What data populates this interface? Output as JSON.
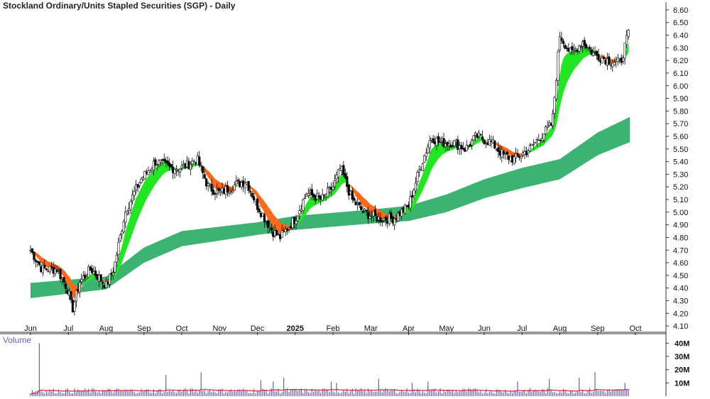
{
  "chart_data": {
    "type": "line",
    "subtype": "candlestick with moving-average ribbons",
    "title": "Stockland Ordinary/Units Stapled Securities (SGP) - Daily",
    "xlabel": "",
    "ylabel": "",
    "grid": false,
    "x_ticks": [
      "Jun",
      "Jul",
      "Aug",
      "Sep",
      "Oct",
      "Nov",
      "Dec",
      "2025",
      "Feb",
      "Mar",
      "Apr",
      "May",
      "Jun",
      "Jul",
      "Aug",
      "Sep",
      "Oct"
    ],
    "y_ticks": [
      "6.60",
      "6.50",
      "6.40",
      "6.30",
      "6.20",
      "6.10",
      "6.00",
      "5.90",
      "5.80",
      "5.70",
      "5.60",
      "5.50",
      "5.40",
      "5.30",
      "5.20",
      "5.10",
      "5.00",
      "4.90",
      "4.80",
      "4.70",
      "4.60",
      "4.50",
      "4.40",
      "4.30",
      "4.20",
      "4.10"
    ],
    "ylim": [
      4.05,
      6.65
    ],
    "price_series": {
      "name": "",
      "anchors_month_price": [
        [
          0.0,
          4.7
        ],
        [
          0.3,
          4.55
        ],
        [
          0.7,
          4.55
        ],
        [
          1.0,
          4.38
        ],
        [
          1.1,
          4.22
        ],
        [
          1.3,
          4.45
        ],
        [
          1.6,
          4.55
        ],
        [
          2.0,
          4.42
        ],
        [
          2.2,
          4.55
        ],
        [
          2.5,
          5.0
        ],
        [
          2.9,
          5.25
        ],
        [
          3.3,
          5.4
        ],
        [
          3.7,
          5.35
        ],
        [
          4.0,
          5.35
        ],
        [
          4.4,
          5.42
        ],
        [
          4.7,
          5.2
        ],
        [
          5.0,
          5.15
        ],
        [
          5.3,
          5.2
        ],
        [
          5.7,
          5.25
        ],
        [
          6.0,
          5.05
        ],
        [
          6.4,
          4.85
        ],
        [
          6.6,
          4.8
        ],
        [
          7.0,
          4.95
        ],
        [
          7.3,
          5.15
        ],
        [
          7.7,
          5.1
        ],
        [
          8.0,
          5.2
        ],
        [
          8.2,
          5.35
        ],
        [
          8.5,
          5.1
        ],
        [
          8.8,
          5.0
        ],
        [
          9.2,
          4.95
        ],
        [
          9.6,
          4.95
        ],
        [
          10.0,
          5.05
        ],
        [
          10.3,
          5.35
        ],
        [
          10.6,
          5.6
        ],
        [
          10.8,
          5.55
        ],
        [
          11.2,
          5.55
        ],
        [
          11.5,
          5.5
        ],
        [
          11.8,
          5.6
        ],
        [
          12.2,
          5.55
        ],
        [
          12.5,
          5.45
        ],
        [
          12.8,
          5.42
        ],
        [
          13.2,
          5.5
        ],
        [
          13.5,
          5.6
        ],
        [
          13.8,
          5.7
        ],
        [
          13.9,
          6.05
        ],
        [
          14.0,
          6.4
        ],
        [
          14.3,
          6.25
        ],
        [
          14.6,
          6.35
        ],
        [
          14.9,
          6.25
        ],
        [
          15.3,
          6.2
        ],
        [
          15.6,
          6.18
        ],
        [
          15.85,
          6.45
        ]
      ]
    },
    "short_ma_ribbon": {
      "name": "",
      "colors": {
        "rising": "#22e622",
        "falling": "#ff6a1a",
        "flat": "#f5b0b0"
      }
    },
    "long_ma_ribbon": {
      "name": "",
      "color": "#3cb371",
      "anchors_month_low_high": [
        [
          0.0,
          4.32,
          4.44
        ],
        [
          2.0,
          4.39,
          4.49
        ],
        [
          3.0,
          4.6,
          4.72
        ],
        [
          4.0,
          4.73,
          4.85
        ],
        [
          6.0,
          4.82,
          4.92
        ],
        [
          7.0,
          4.86,
          4.97
        ],
        [
          9.0,
          4.91,
          5.02
        ],
        [
          10.0,
          4.93,
          5.05
        ],
        [
          11.0,
          5.0,
          5.14
        ],
        [
          12.0,
          5.11,
          5.26
        ],
        [
          13.0,
          5.19,
          5.35
        ],
        [
          14.0,
          5.26,
          5.42
        ],
        [
          15.0,
          5.45,
          5.63
        ],
        [
          15.9,
          5.56,
          5.76
        ]
      ]
    },
    "volume": {
      "label": "Volume",
      "y_ticks": [
        "40M",
        "30M",
        "20M",
        "10M"
      ],
      "ylim": [
        0,
        45
      ],
      "average_line_color": "#cc3344",
      "typical_daily_M": 4,
      "spikes_month_M": [
        [
          0.0,
          1.8
        ],
        [
          0.25,
          40.0
        ],
        [
          1.2,
          3.0
        ],
        [
          2.6,
          4.0
        ],
        [
          3.6,
          16.0
        ],
        [
          4.5,
          18.0
        ],
        [
          6.1,
          12.0
        ],
        [
          6.4,
          11.0
        ],
        [
          6.7,
          14.0
        ],
        [
          7.95,
          11.0
        ],
        [
          8.1,
          10.0
        ],
        [
          9.2,
          13.0
        ],
        [
          10.1,
          10.0
        ],
        [
          10.5,
          11.0
        ],
        [
          12.9,
          11.0
        ],
        [
          13.7,
          13.0
        ],
        [
          14.5,
          14.0
        ],
        [
          14.95,
          18.0
        ],
        [
          15.7,
          10.0
        ],
        [
          15.95,
          9.0
        ]
      ]
    }
  }
}
